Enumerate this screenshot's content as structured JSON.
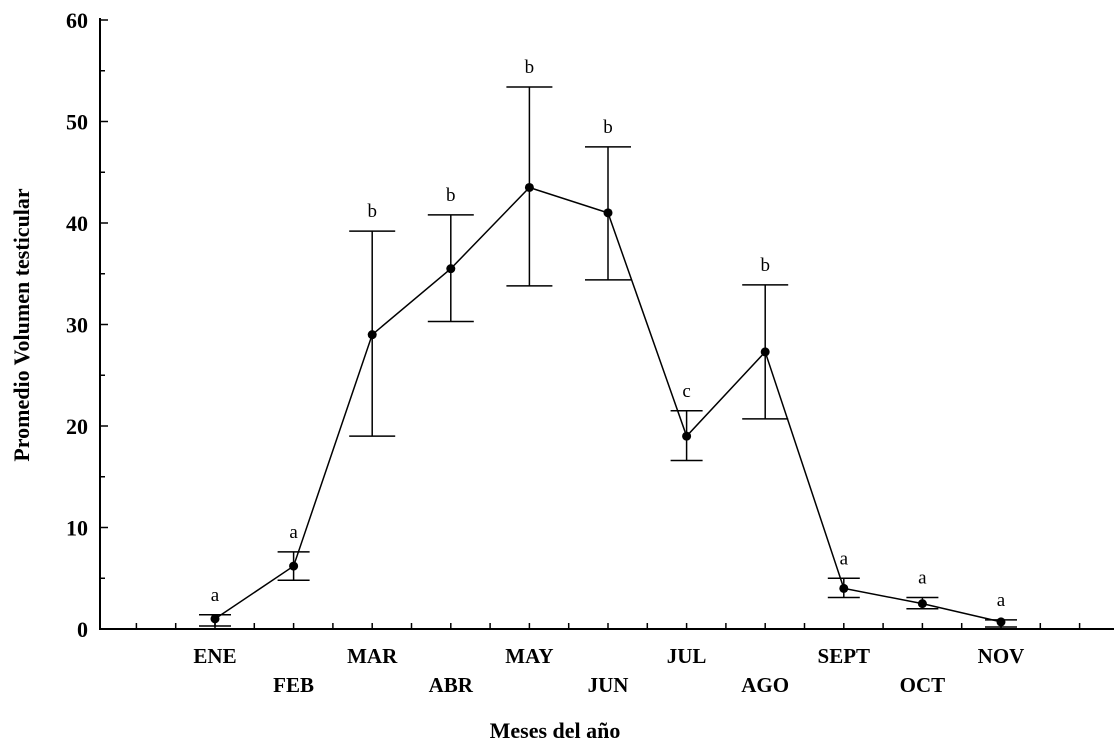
{
  "chart_data": {
    "type": "line",
    "title": "",
    "xlabel": "Meses del año",
    "ylabel": "Promedio Volumen  testicular",
    "ylim": [
      0,
      60
    ],
    "yticks": [
      0,
      10,
      20,
      30,
      40,
      50,
      60
    ],
    "grid": false,
    "error_bars": true,
    "categories": [
      "ENE",
      "FEB",
      "MAR",
      "ABR",
      "MAY",
      "JUN",
      "JUL",
      "AGO",
      "SEPT",
      "OCT",
      "NOV"
    ],
    "series": [
      {
        "values": [
          1.0,
          6.2,
          29.0,
          35.5,
          43.5,
          41.0,
          19.0,
          27.3,
          4.0,
          2.5,
          0.7
        ],
        "err_low": [
          0.3,
          4.8,
          19.0,
          30.3,
          33.8,
          34.4,
          16.6,
          20.7,
          3.1,
          2.0,
          0.2
        ],
        "err_high": [
          1.4,
          7.6,
          39.2,
          40.8,
          53.4,
          47.5,
          21.5,
          33.9,
          5.0,
          3.1,
          0.9
        ],
        "letters": [
          "a",
          "a",
          "b",
          "b",
          "b",
          "b",
          "c",
          "b",
          "a",
          "a",
          "a"
        ]
      }
    ]
  }
}
